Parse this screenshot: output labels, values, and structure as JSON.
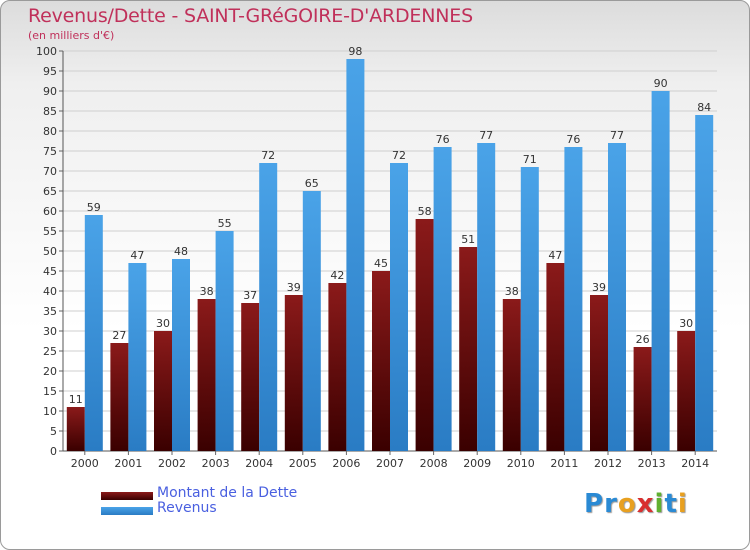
{
  "header": {
    "title": "Revenus/Dette - SAINT-GRéGOIRE-D'ARDENNES",
    "subtitle": "(en milliers d'€)"
  },
  "legend": {
    "debt_label": "Montant de la Dette",
    "revenue_label": "Revenus"
  },
  "logo": {
    "text": "Proxiti"
  },
  "colors": {
    "debt": "#8b1a1a",
    "debt_dark": "#3a0000",
    "revenue": "#4aa3e8",
    "revenue_dark": "#2a7cc4",
    "axis_text": "#333333",
    "grid": "#cfcfcf"
  },
  "chart_data": {
    "type": "bar",
    "title": "Revenus/Dette - SAINT-GRéGOIRE-D'ARDENNES",
    "subtitle": "(en milliers d'€)",
    "categories": [
      "2000",
      "2001",
      "2002",
      "2003",
      "2004",
      "2005",
      "2006",
      "2007",
      "2008",
      "2009",
      "2010",
      "2011",
      "2012",
      "2013",
      "2014"
    ],
    "series": [
      {
        "name": "Montant de la Dette",
        "values": [
          11,
          27,
          30,
          38,
          37,
          39,
          42,
          45,
          58,
          51,
          38,
          47,
          39,
          26,
          30
        ]
      },
      {
        "name": "Revenus",
        "values": [
          59,
          47,
          48,
          55,
          72,
          65,
          98,
          72,
          76,
          77,
          71,
          76,
          77,
          90,
          84
        ]
      }
    ],
    "ylim": [
      0,
      100
    ],
    "ytick_step": 5,
    "grid": true,
    "data_labels": true,
    "legend_position": "bottom-left"
  }
}
